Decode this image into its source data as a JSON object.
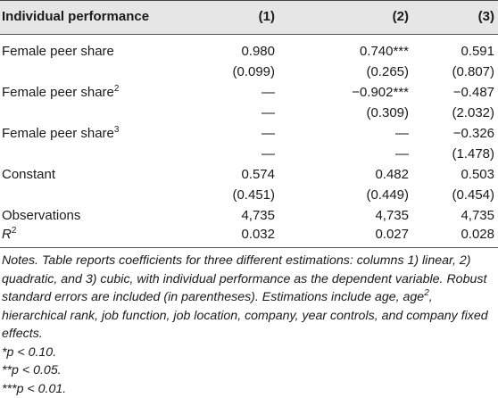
{
  "table": {
    "header": {
      "label": "Individual performance",
      "col1": "(1)",
      "col2": "(2)",
      "col3": "(3)"
    },
    "rows": [
      {
        "label": "Female peer share",
        "sup": "",
        "c1": "0.980",
        "c2": "0.740***",
        "c3": "0.591"
      },
      {
        "label": "",
        "sup": "",
        "c1": "(0.099)",
        "c2": "(0.265)",
        "c3": "(0.807)"
      },
      {
        "label": "Female peer share",
        "sup": "2",
        "c1": "—",
        "c2": "−0.902***",
        "c3": "−0.487"
      },
      {
        "label": "",
        "sup": "",
        "c1": "—",
        "c2": "(0.309)",
        "c3": "(2.032)"
      },
      {
        "label": "Female peer share",
        "sup": "3",
        "c1": "—",
        "c2": "—",
        "c3": "−0.326"
      },
      {
        "label": "",
        "sup": "",
        "c1": "—",
        "c2": "—",
        "c3": "(1.478)"
      },
      {
        "label": "Constant",
        "sup": "",
        "c1": "0.574",
        "c2": "0.482",
        "c3": "0.503"
      },
      {
        "label": "",
        "sup": "",
        "c1": "(0.451)",
        "c2": "(0.449)",
        "c3": "(0.454)"
      },
      {
        "label": "Observations",
        "sup": "",
        "c1": "4,735",
        "c2": "4,735",
        "c3": "4,735"
      },
      {
        "label": "R",
        "sup": "2",
        "c1": "0.032",
        "c2": "0.027",
        "c3": "0.028"
      }
    ]
  },
  "notes": {
    "line1_a": "Notes. Table reports coefficients for three different estimations: columns 1) linear, 2) quadratic, and 3) cubic, with individual performance as the dependent variable. Robust standard errors are included (in parentheses). Estimations include age, age",
    "line1_sup": "2",
    "line1_b": ", hierarchical rank, job function, job location, company, year controls, and company fixed effects.",
    "sig1": "*p < 0.10.",
    "sig2": "**p < 0.05.",
    "sig3": "***p < 0.01."
  }
}
